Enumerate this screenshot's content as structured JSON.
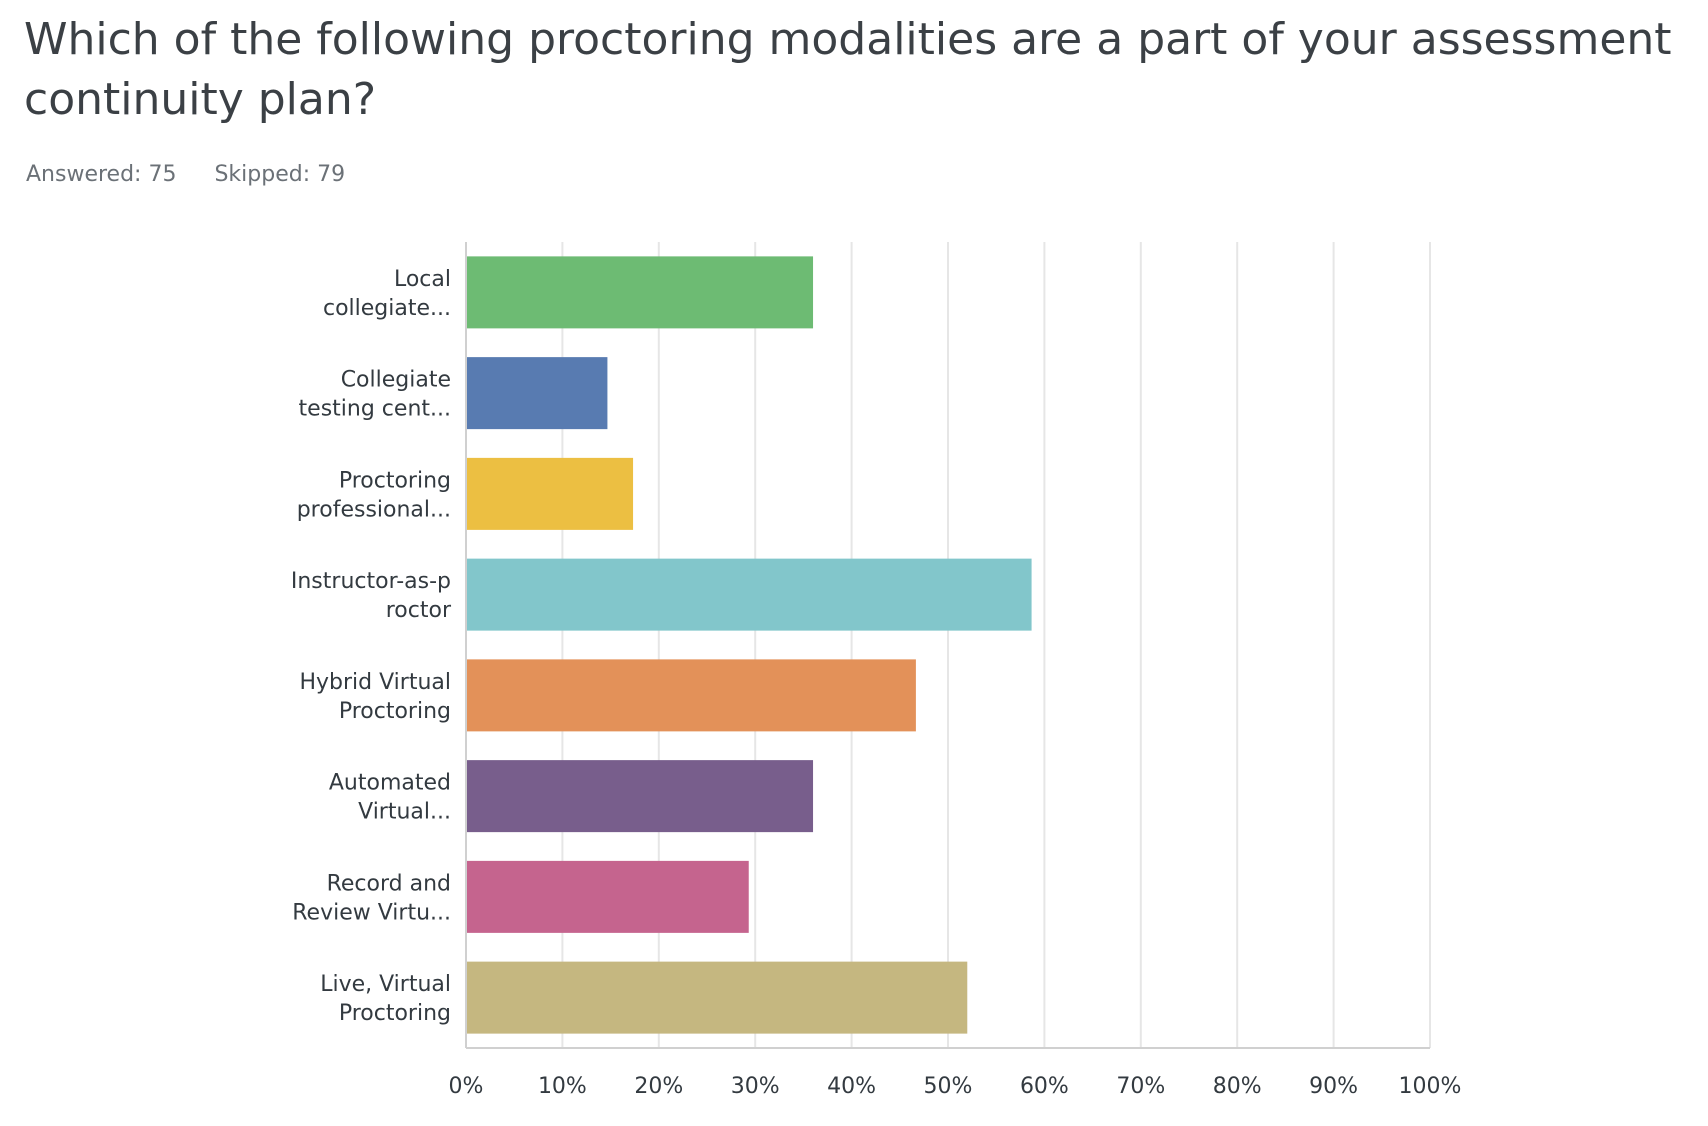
{
  "question": {
    "title": "Which of the following proctoring modalities are a part of your assessment continuity plan?"
  },
  "stats": {
    "answered_label": "Answered: 75",
    "skipped_label": "Skipped: 79"
  },
  "chart_data": {
    "type": "bar",
    "orientation": "horizontal",
    "categories": [
      "Local collegiate...",
      "Collegiate testing cent...",
      "Proctoring professional...",
      "Instructor-as-p roctor",
      "Hybrid Virtual Proctoring",
      "Automated Virtual...",
      "Record and Review Virtu...",
      "Live, Virtual Proctoring"
    ],
    "category_lines": [
      [
        "Local",
        "collegiate..."
      ],
      [
        "Collegiate",
        "testing cent..."
      ],
      [
        "Proctoring",
        "professional..."
      ],
      [
        "Instructor-as-p",
        "roctor"
      ],
      [
        "Hybrid Virtual",
        "Proctoring"
      ],
      [
        "Automated",
        "Virtual..."
      ],
      [
        "Record and",
        "Review Virtu..."
      ],
      [
        "Live, Virtual",
        "Proctoring"
      ]
    ],
    "values": [
      36,
      14.67,
      17.33,
      58.67,
      46.67,
      36,
      29.33,
      52
    ],
    "colors": [
      "#6dbb73",
      "#587bb1",
      "#ecbf42",
      "#82c6cb",
      "#e39159",
      "#785e8c",
      "#c5648e",
      "#c5b780"
    ],
    "xlim": [
      0,
      100
    ],
    "ticks": [
      "0%",
      "10%",
      "20%",
      "30%",
      "40%",
      "50%",
      "60%",
      "70%",
      "80%",
      "90%",
      "100%"
    ],
    "grid": true,
    "legend": "none"
  }
}
